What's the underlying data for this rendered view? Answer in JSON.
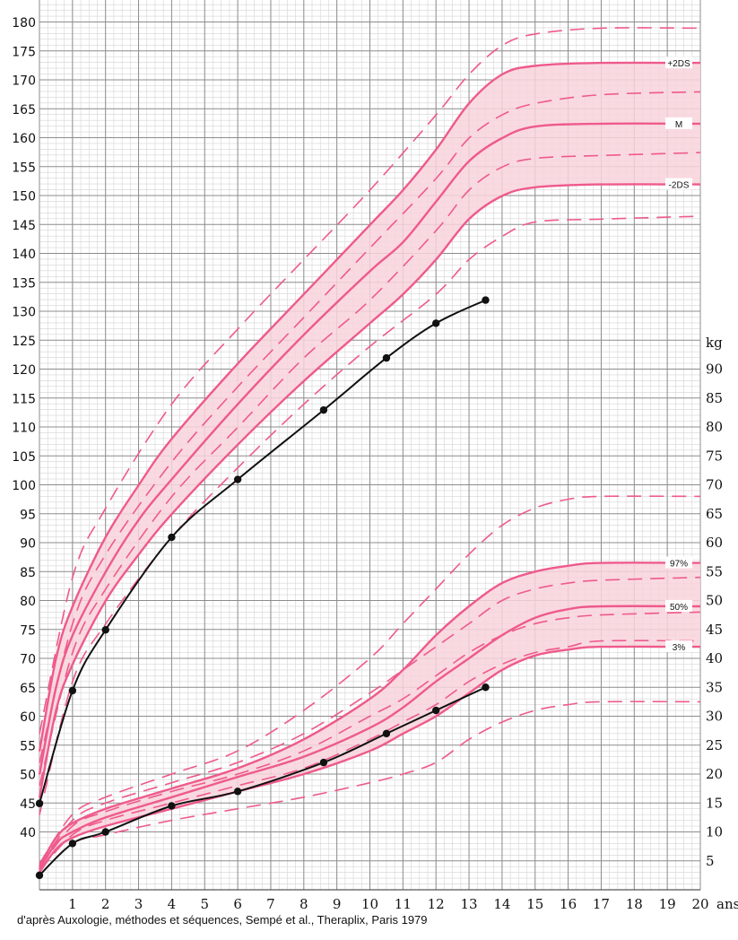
{
  "chart_data": [
    {
      "name": "height-chart",
      "type": "line",
      "x_unit": "ans",
      "y_unit": "",
      "xlim": [
        0,
        20
      ],
      "ylim": [
        35,
        180
      ],
      "y_ticks": [
        40,
        45,
        50,
        55,
        60,
        65,
        70,
        75,
        80,
        85,
        90,
        95,
        100,
        105,
        110,
        115,
        120,
        125,
        130,
        135,
        140,
        145,
        150,
        155,
        160,
        165,
        170,
        175,
        180
      ],
      "x_ticks": [
        1,
        2,
        3,
        4,
        5,
        6,
        7,
        8,
        9,
        10,
        11,
        12,
        13,
        14,
        15,
        16,
        17,
        18,
        19,
        20
      ],
      "grid": true,
      "band_color": "#f9d3dc",
      "curve_color": "#ee5a8c",
      "reference_curves": [
        {
          "label": "+2DS",
          "style": "solid",
          "points": [
            [
              0,
              54
            ],
            [
              0.5,
              70
            ],
            [
              1,
              79
            ],
            [
              2,
              91
            ],
            [
              3,
              100
            ],
            [
              4,
              108
            ],
            [
              6,
              121
            ],
            [
              8,
              133
            ],
            [
              10,
              145
            ],
            [
              11,
              151
            ],
            [
              12,
              158
            ],
            [
              13,
              166
            ],
            [
              14,
              171
            ],
            [
              15,
              172.5
            ],
            [
              17,
              173
            ],
            [
              20,
              173
            ]
          ]
        },
        {
          "label": "M",
          "style": "solid",
          "points": [
            [
              0,
              50
            ],
            [
              0.5,
              65
            ],
            [
              1,
              74
            ],
            [
              2,
              85
            ],
            [
              3,
              94
            ],
            [
              4,
              101
            ],
            [
              6,
              114
            ],
            [
              8,
              126
            ],
            [
              10,
              137
            ],
            [
              11,
              142
            ],
            [
              12,
              149
            ],
            [
              13,
              156
            ],
            [
              14,
              160
            ],
            [
              15,
              162
            ],
            [
              17,
              162.5
            ],
            [
              20,
              162.5
            ]
          ]
        },
        {
          "label": "-2DS",
          "style": "solid",
          "points": [
            [
              0,
              46
            ],
            [
              0.5,
              61
            ],
            [
              1,
              69
            ],
            [
              2,
              80
            ],
            [
              3,
              88
            ],
            [
              4,
              95
            ],
            [
              6,
              107
            ],
            [
              8,
              118
            ],
            [
              10,
              128
            ],
            [
              11,
              133
            ],
            [
              12,
              139
            ],
            [
              13,
              146
            ],
            [
              14,
              150
            ],
            [
              15,
              151.5
            ],
            [
              17,
              152
            ],
            [
              20,
              152
            ]
          ]
        },
        {
          "label": "",
          "style": "dashed",
          "points": [
            [
              0,
              57
            ],
            [
              1,
              84
            ],
            [
              2,
              96
            ],
            [
              4,
              114
            ],
            [
              6,
              127
            ],
            [
              8,
              139
            ],
            [
              10,
              151
            ],
            [
              12,
              164
            ],
            [
              13,
              171
            ],
            [
              14,
              176
            ],
            [
              15,
              178
            ],
            [
              17,
              179
            ],
            [
              20,
              179
            ]
          ]
        },
        {
          "label": "",
          "style": "dashed",
          "points": [
            [
              0,
              52
            ],
            [
              1,
              76
            ],
            [
              2,
              88
            ],
            [
              4,
              104
            ],
            [
              6,
              117
            ],
            [
              8,
              129
            ],
            [
              10,
              141
            ],
            [
              12,
              153
            ],
            [
              13,
              160
            ],
            [
              14,
              164
            ],
            [
              15,
              166
            ],
            [
              17,
              167.5
            ],
            [
              20,
              168
            ]
          ]
        },
        {
          "label": "",
          "style": "dashed",
          "points": [
            [
              0,
              48
            ],
            [
              1,
              71
            ],
            [
              2,
              82
            ],
            [
              4,
              98
            ],
            [
              6,
              110
            ],
            [
              8,
              122
            ],
            [
              10,
              132
            ],
            [
              12,
              144
            ],
            [
              13,
              151
            ],
            [
              14,
              155
            ],
            [
              15,
              156.5
            ],
            [
              17,
              157
            ],
            [
              20,
              157.5
            ]
          ]
        },
        {
          "label": "",
          "style": "dashed",
          "points": [
            [
              0,
              43
            ],
            [
              1,
              66
            ],
            [
              2,
              76
            ],
            [
              4,
              91
            ],
            [
              6,
              103
            ],
            [
              8,
              114
            ],
            [
              10,
              124
            ],
            [
              12,
              133
            ],
            [
              13,
              139
            ],
            [
              14,
              143
            ],
            [
              15,
              145.5
            ],
            [
              17,
              146
            ],
            [
              20,
              146.5
            ]
          ]
        }
      ],
      "patient": {
        "points": [
          [
            0,
            45
          ],
          [
            1,
            64.5
          ],
          [
            2,
            75
          ],
          [
            4,
            91
          ],
          [
            6,
            101
          ],
          [
            8.6,
            113
          ],
          [
            10.5,
            122
          ],
          [
            12,
            128
          ],
          [
            13.5,
            132
          ]
        ]
      }
    },
    {
      "name": "weight-chart",
      "type": "line",
      "x_unit": "ans",
      "y_unit": "kg",
      "xlim": [
        0,
        20
      ],
      "ylim": [
        0,
        100
      ],
      "y_ticks": [
        5,
        10,
        15,
        20,
        25,
        30,
        35,
        40,
        45,
        50,
        55,
        60,
        65,
        70,
        75,
        80,
        85,
        90
      ],
      "x_ticks": [
        1,
        2,
        3,
        4,
        5,
        6,
        7,
        8,
        9,
        10,
        11,
        12,
        13,
        14,
        15,
        16,
        17,
        18,
        19,
        20
      ],
      "grid": true,
      "band_color": "#f9d3dc",
      "curve_color": "#ee5a8c",
      "reference_curves": [
        {
          "label": "97%",
          "style": "solid",
          "points": [
            [
              0,
              4
            ],
            [
              0.5,
              9
            ],
            [
              1,
              11.5
            ],
            [
              2,
              14
            ],
            [
              4,
              17.5
            ],
            [
              6,
              21
            ],
            [
              8,
              26
            ],
            [
              10,
              33
            ],
            [
              11,
              38
            ],
            [
              12,
              44
            ],
            [
              13,
              49
            ],
            [
              14,
              53
            ],
            [
              15,
              55
            ],
            [
              16,
              56
            ],
            [
              17,
              56.5
            ],
            [
              20,
              56.5
            ]
          ]
        },
        {
          "label": "50%",
          "style": "solid",
          "points": [
            [
              0,
              3.5
            ],
            [
              0.5,
              8
            ],
            [
              1,
              10
            ],
            [
              2,
              12.5
            ],
            [
              4,
              16
            ],
            [
              6,
              19.5
            ],
            [
              8,
              23
            ],
            [
              10,
              28
            ],
            [
              11,
              31.5
            ],
            [
              12,
              36
            ],
            [
              13,
              40
            ],
            [
              14,
              44
            ],
            [
              15,
              47
            ],
            [
              16,
              48.5
            ],
            [
              17,
              49
            ],
            [
              20,
              49
            ]
          ]
        },
        {
          "label": "3%",
          "style": "solid",
          "points": [
            [
              0,
              3
            ],
            [
              0.5,
              7
            ],
            [
              1,
              9
            ],
            [
              2,
              11
            ],
            [
              4,
              14
            ],
            [
              6,
              17
            ],
            [
              8,
              20
            ],
            [
              10,
              24
            ],
            [
              11,
              27
            ],
            [
              12,
              30
            ],
            [
              13,
              34
            ],
            [
              14,
              38
            ],
            [
              15,
              40.5
            ],
            [
              16,
              41.5
            ],
            [
              17,
              42
            ],
            [
              20,
              42
            ]
          ]
        },
        {
          "label": "",
          "style": "dashed",
          "points": [
            [
              0,
              4.5
            ],
            [
              1,
              13
            ],
            [
              2,
              16
            ],
            [
              4,
              20
            ],
            [
              6,
              24
            ],
            [
              8,
              31
            ],
            [
              10,
              40
            ],
            [
              11,
              46
            ],
            [
              12,
              52
            ],
            [
              13,
              58
            ],
            [
              14,
              63
            ],
            [
              15,
              66
            ],
            [
              16,
              67.5
            ],
            [
              17,
              68
            ],
            [
              20,
              68
            ]
          ]
        },
        {
          "label": "",
          "style": "dashed",
          "points": [
            [
              0,
              4
            ],
            [
              1,
              12
            ],
            [
              2,
              15
            ],
            [
              4,
              18.5
            ],
            [
              6,
              22
            ],
            [
              8,
              27
            ],
            [
              10,
              34
            ],
            [
              11,
              38
            ],
            [
              12,
              42
            ],
            [
              13,
              46
            ],
            [
              14,
              50
            ],
            [
              15,
              52
            ],
            [
              16,
              53
            ],
            [
              17,
              53.5
            ],
            [
              20,
              54
            ]
          ]
        },
        {
          "label": "",
          "style": "dashed",
          "points": [
            [
              0,
              3.8
            ],
            [
              1,
              11
            ],
            [
              2,
              13.5
            ],
            [
              4,
              17
            ],
            [
              6,
              20
            ],
            [
              8,
              24
            ],
            [
              10,
              30
            ],
            [
              11,
              33
            ],
            [
              12,
              37
            ],
            [
              13,
              41
            ],
            [
              14,
              44
            ],
            [
              15,
              46
            ],
            [
              16,
              47
            ],
            [
              17,
              47.5
            ],
            [
              20,
              48
            ]
          ]
        },
        {
          "label": "",
          "style": "dashed",
          "points": [
            [
              0,
              3.3
            ],
            [
              1,
              9.5
            ],
            [
              2,
              12
            ],
            [
              4,
              15
            ],
            [
              6,
              18
            ],
            [
              8,
              21
            ],
            [
              10,
              26
            ],
            [
              11,
              29
            ],
            [
              12,
              32
            ],
            [
              13,
              36
            ],
            [
              14,
              39
            ],
            [
              15,
              41
            ],
            [
              16,
              42
            ],
            [
              17,
              43
            ],
            [
              20,
              43
            ]
          ]
        },
        {
          "label": "",
          "style": "dashed",
          "points": [
            [
              0,
              2.5
            ],
            [
              1,
              8
            ],
            [
              2,
              9.5
            ],
            [
              4,
              12
            ],
            [
              6,
              14
            ],
            [
              8,
              16
            ],
            [
              10,
              18.5
            ],
            [
              11,
              20
            ],
            [
              12,
              22
            ],
            [
              13,
              26
            ],
            [
              14,
              29
            ],
            [
              15,
              31
            ],
            [
              16,
              32
            ],
            [
              17,
              32.5
            ],
            [
              20,
              32.5
            ]
          ]
        }
      ],
      "patient": {
        "points": [
          [
            0,
            2.5
          ],
          [
            1,
            8
          ],
          [
            2,
            10
          ],
          [
            4,
            14.5
          ],
          [
            6,
            17
          ],
          [
            8.6,
            22
          ],
          [
            10.5,
            27
          ],
          [
            12,
            31
          ],
          [
            13.5,
            35
          ]
        ]
      }
    }
  ],
  "source_note": "d'après Auxologie, méthodes et séquences, Sempé et al., Theraplix, Paris 1979"
}
